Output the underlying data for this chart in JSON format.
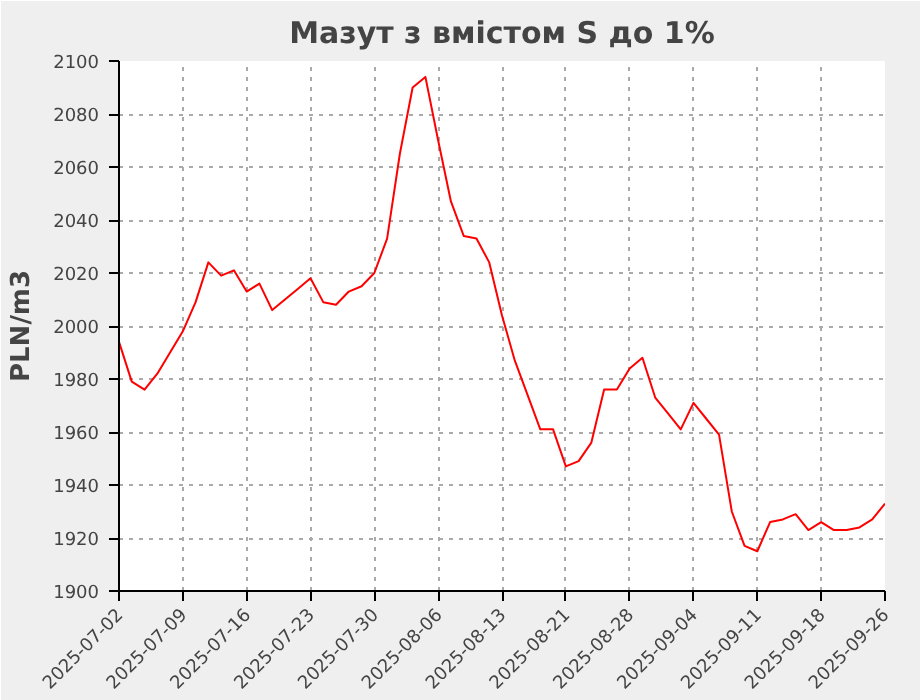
{
  "chart_data": {
    "type": "line",
    "title": "Мазут з вмістом S до 1%",
    "ylabel": "PLN/m3",
    "categories": [
      "2025-07-02",
      null,
      null,
      null,
      null,
      "2025-07-09",
      null,
      null,
      null,
      null,
      "2025-07-16",
      null,
      null,
      null,
      null,
      "2025-07-23",
      null,
      null,
      null,
      null,
      "2025-07-30",
      null,
      null,
      null,
      null,
      "2025-08-06",
      null,
      null,
      null,
      null,
      "2025-08-13",
      null,
      null,
      null,
      null,
      "2025-08-21",
      null,
      null,
      null,
      null,
      "2025-08-28",
      null,
      null,
      null,
      null,
      "2025-09-04",
      null,
      null,
      null,
      null,
      "2025-09-11",
      null,
      null,
      null,
      null,
      "2025-09-18",
      null,
      null,
      null,
      null,
      "2025-09-26"
    ],
    "series": [
      {
        "color": "#ff0000",
        "values": [
          1994,
          1979,
          1976,
          1982,
          1990,
          1998,
          2009,
          2024,
          2019,
          2021,
          2013,
          2016,
          2006,
          2010,
          2014,
          2018,
          2009,
          2008,
          2013,
          2015,
          2020,
          2033,
          2065,
          2090,
          2094,
          2070,
          2047,
          2034,
          2033,
          2024,
          2004,
          1987,
          1974,
          1961,
          1961,
          1947,
          1949,
          1956,
          1976,
          1976,
          1984,
          1988,
          1973,
          1967,
          1961,
          1971,
          1965,
          1959,
          1930,
          1917,
          1915,
          1926,
          1927,
          1929,
          1923,
          1926,
          1923,
          1923,
          1924,
          1927,
          1933
        ]
      }
    ],
    "ylim": [
      1900,
      2100
    ],
    "yticks": [
      1900,
      1920,
      1940,
      1960,
      1980,
      2000,
      2020,
      2040,
      2060,
      2080,
      2100
    ],
    "grid": true,
    "marker": "none",
    "line_style": "solid"
  }
}
